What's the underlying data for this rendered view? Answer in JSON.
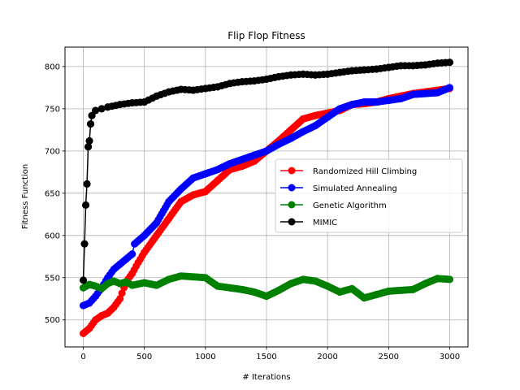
{
  "chart_data": {
    "type": "line",
    "title": "Flip Flop Fitness",
    "xlabel": "# Iterations",
    "ylabel": "Fitness Function",
    "xlim": [
      -150,
      3150
    ],
    "ylim": [
      468,
      823
    ],
    "xticks": [
      0,
      500,
      1000,
      1500,
      2000,
      2500,
      3000
    ],
    "yticks": [
      500,
      550,
      600,
      650,
      700,
      750,
      800
    ],
    "grid": true,
    "legend_position": "center-right",
    "series": [
      {
        "name": "Randomized Hill Climbing",
        "color": "#ff0000",
        "points": [
          [
            0,
            484
          ],
          [
            50,
            490
          ],
          [
            100,
            500
          ],
          [
            150,
            505
          ],
          [
            200,
            508
          ],
          [
            250,
            515
          ],
          [
            300,
            525
          ],
          [
            350,
            545
          ],
          [
            400,
            555
          ],
          [
            450,
            568
          ],
          [
            500,
            580
          ],
          [
            600,
            600
          ],
          [
            700,
            620
          ],
          [
            800,
            640
          ],
          [
            900,
            648
          ],
          [
            1000,
            652
          ],
          [
            1100,
            665
          ],
          [
            1200,
            678
          ],
          [
            1300,
            682
          ],
          [
            1400,
            688
          ],
          [
            1500,
            700
          ],
          [
            1600,
            712
          ],
          [
            1700,
            725
          ],
          [
            1800,
            738
          ],
          [
            1900,
            742
          ],
          [
            2000,
            745
          ],
          [
            2100,
            748
          ],
          [
            2200,
            755
          ],
          [
            2300,
            756
          ],
          [
            2400,
            758
          ],
          [
            2500,
            762
          ],
          [
            2600,
            765
          ],
          [
            2700,
            768
          ],
          [
            2800,
            770
          ],
          [
            2900,
            772
          ],
          [
            3000,
            774
          ]
        ]
      },
      {
        "name": "Simulated Annealing",
        "color": "#0000ff",
        "points": [
          [
            0,
            517
          ],
          [
            50,
            520
          ],
          [
            100,
            528
          ],
          [
            150,
            538
          ],
          [
            200,
            550
          ],
          [
            250,
            560
          ],
          [
            300,
            566
          ],
          [
            350,
            572
          ],
          [
            400,
            578
          ],
          [
            420,
            590
          ],
          [
            500,
            600
          ],
          [
            600,
            615
          ],
          [
            700,
            640
          ],
          [
            800,
            655
          ],
          [
            900,
            668
          ],
          [
            1000,
            673
          ],
          [
            1100,
            678
          ],
          [
            1200,
            685
          ],
          [
            1300,
            690
          ],
          [
            1400,
            695
          ],
          [
            1500,
            700
          ],
          [
            1600,
            708
          ],
          [
            1700,
            715
          ],
          [
            1800,
            723
          ],
          [
            1900,
            730
          ],
          [
            2000,
            740
          ],
          [
            2100,
            750
          ],
          [
            2200,
            755
          ],
          [
            2300,
            758
          ],
          [
            2400,
            758
          ],
          [
            2500,
            760
          ],
          [
            2600,
            762
          ],
          [
            2700,
            767
          ],
          [
            2800,
            768
          ],
          [
            2900,
            769
          ],
          [
            3000,
            775
          ]
        ]
      },
      {
        "name": "Genetic Algorithm",
        "color": "#008000",
        "points": [
          [
            0,
            538
          ],
          [
            50,
            542
          ],
          [
            100,
            540
          ],
          [
            150,
            537
          ],
          [
            200,
            543
          ],
          [
            250,
            546
          ],
          [
            300,
            543
          ],
          [
            350,
            545
          ],
          [
            400,
            541
          ],
          [
            500,
            544
          ],
          [
            600,
            541
          ],
          [
            700,
            548
          ],
          [
            800,
            552
          ],
          [
            900,
            551
          ],
          [
            1000,
            550
          ],
          [
            1100,
            540
          ],
          [
            1200,
            538
          ],
          [
            1300,
            536
          ],
          [
            1400,
            533
          ],
          [
            1500,
            528
          ],
          [
            1600,
            535
          ],
          [
            1700,
            543
          ],
          [
            1800,
            548
          ],
          [
            1900,
            546
          ],
          [
            2000,
            540
          ],
          [
            2100,
            533
          ],
          [
            2200,
            537
          ],
          [
            2300,
            526
          ],
          [
            2400,
            530
          ],
          [
            2500,
            534
          ],
          [
            2600,
            535
          ],
          [
            2700,
            536
          ],
          [
            2800,
            543
          ],
          [
            2900,
            549
          ],
          [
            3000,
            548
          ]
        ]
      },
      {
        "name": "MIMIC",
        "color": "#000000",
        "points": [
          [
            0,
            547
          ],
          [
            10,
            590
          ],
          [
            20,
            636
          ],
          [
            30,
            661
          ],
          [
            40,
            705
          ],
          [
            50,
            712
          ],
          [
            60,
            732
          ],
          [
            70,
            742
          ],
          [
            100,
            748
          ],
          [
            150,
            750
          ],
          [
            200,
            752
          ],
          [
            300,
            755
          ],
          [
            400,
            757
          ],
          [
            500,
            758
          ],
          [
            600,
            765
          ],
          [
            700,
            770
          ],
          [
            800,
            773
          ],
          [
            900,
            772
          ],
          [
            1000,
            774
          ],
          [
            1100,
            776
          ],
          [
            1200,
            780
          ],
          [
            1300,
            782
          ],
          [
            1400,
            783
          ],
          [
            1500,
            785
          ],
          [
            1600,
            788
          ],
          [
            1700,
            790
          ],
          [
            1800,
            791
          ],
          [
            1900,
            790
          ],
          [
            2000,
            791
          ],
          [
            2100,
            793
          ],
          [
            2200,
            795
          ],
          [
            2300,
            796
          ],
          [
            2400,
            797
          ],
          [
            2500,
            799
          ],
          [
            2600,
            801
          ],
          [
            2700,
            801
          ],
          [
            2800,
            802
          ],
          [
            2900,
            804
          ],
          [
            3000,
            805
          ]
        ]
      }
    ]
  }
}
